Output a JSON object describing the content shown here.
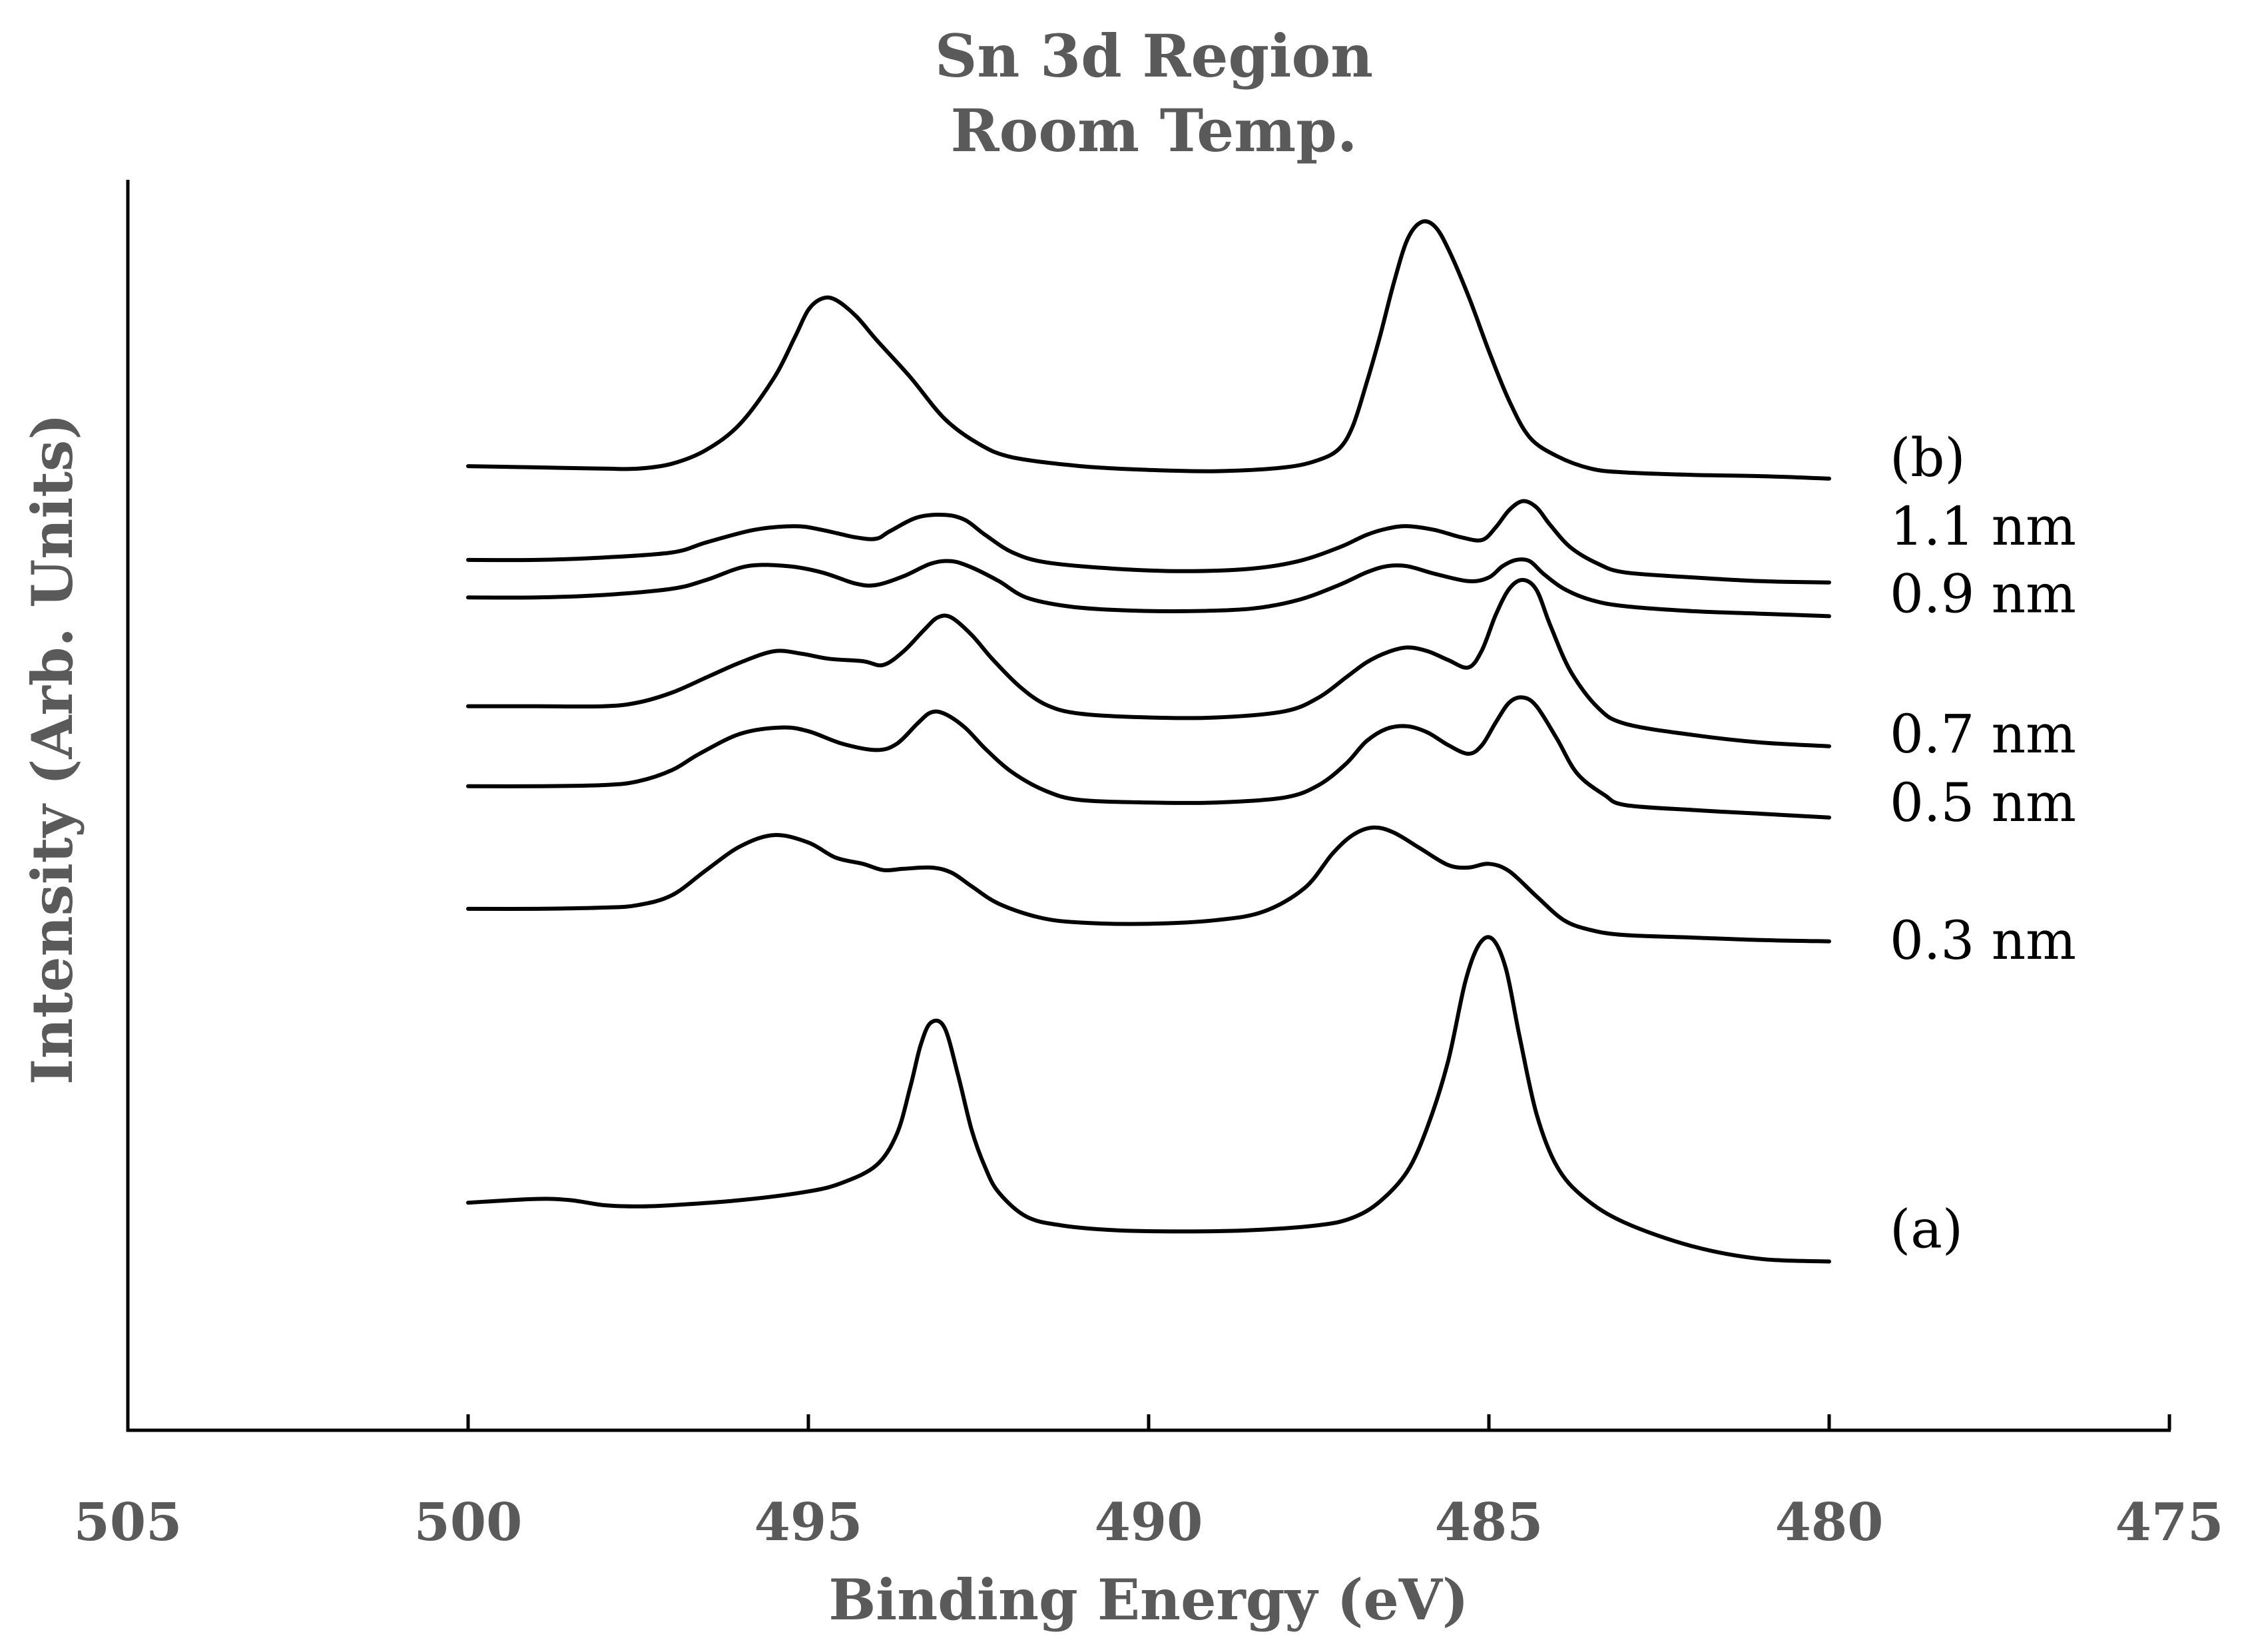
{
  "chart_data": {
    "type": "line",
    "title_lines": [
      "Sn 3d Region",
      "Room Temp."
    ],
    "xlabel": "Binding Energy (eV)",
    "ylabel": "Intensity (Arb. Units)",
    "xlim": [
      505,
      475
    ],
    "x_reversed": true,
    "x_ticks": [
      505,
      500,
      495,
      490,
      485,
      480,
      475
    ],
    "y_units": "arbitrary, stacked offsets (0 = bottom axis, 100 = top of axis)",
    "ylim": [
      0,
      100
    ],
    "series": [
      {
        "name": "(b)",
        "label": "(b)",
        "label_y": 77.8,
        "points": [
          [
            500,
            77.1
          ],
          [
            499,
            77.0
          ],
          [
            498,
            76.9
          ],
          [
            497.5,
            76.9
          ],
          [
            497,
            77.3
          ],
          [
            496.5,
            78.4
          ],
          [
            496,
            80.5
          ],
          [
            495.5,
            84.2
          ],
          [
            495.2,
            87.4
          ],
          [
            495,
            89.6
          ],
          [
            494.8,
            90.5
          ],
          [
            494.6,
            90.4
          ],
          [
            494.3,
            89.1
          ],
          [
            494,
            87.2
          ],
          [
            493.5,
            84.2
          ],
          [
            493,
            80.9
          ],
          [
            492.5,
            78.9
          ],
          [
            492,
            77.8
          ],
          [
            491,
            77.1
          ],
          [
            490,
            76.8
          ],
          [
            489,
            76.7
          ],
          [
            488,
            77.0
          ],
          [
            487.5,
            77.6
          ],
          [
            487.2,
            78.5
          ],
          [
            487,
            80.3
          ],
          [
            486.8,
            83.7
          ],
          [
            486.6,
            87.5
          ],
          [
            486.4,
            91.7
          ],
          [
            486.2,
            95.2
          ],
          [
            486,
            96.6
          ],
          [
            485.8,
            96.3
          ],
          [
            485.6,
            94.5
          ],
          [
            485.3,
            90.7
          ],
          [
            485,
            86.3
          ],
          [
            484.7,
            82.3
          ],
          [
            484.4,
            79.4
          ],
          [
            484,
            77.9
          ],
          [
            483.5,
            76.9
          ],
          [
            483,
            76.6
          ],
          [
            482,
            76.4
          ],
          [
            481,
            76.3
          ],
          [
            480,
            76.1
          ]
        ]
      },
      {
        "name": "1.1 nm",
        "label": "1.1 nm",
        "label_y": 72.3,
        "points": [
          [
            500,
            69.6
          ],
          [
            499,
            69.6
          ],
          [
            498,
            69.8
          ],
          [
            497,
            70.2
          ],
          [
            496.5,
            71.0
          ],
          [
            495.8,
            72.0
          ],
          [
            495.2,
            72.3
          ],
          [
            494.8,
            72.0
          ],
          [
            494.3,
            71.4
          ],
          [
            494,
            71.3
          ],
          [
            493.8,
            71.9
          ],
          [
            493.4,
            73.0
          ],
          [
            493,
            73.2
          ],
          [
            492.7,
            72.8
          ],
          [
            492.4,
            71.6
          ],
          [
            492,
            70.2
          ],
          [
            491.5,
            69.4
          ],
          [
            490.5,
            68.9
          ],
          [
            489.5,
            68.7
          ],
          [
            488.5,
            68.9
          ],
          [
            487.8,
            69.5
          ],
          [
            487.2,
            70.6
          ],
          [
            486.8,
            71.6
          ],
          [
            486.5,
            72.1
          ],
          [
            486.2,
            72.3
          ],
          [
            485.8,
            72.0
          ],
          [
            485.4,
            71.4
          ],
          [
            485.1,
            71.2
          ],
          [
            484.9,
            72.2
          ],
          [
            484.7,
            73.6
          ],
          [
            484.5,
            74.3
          ],
          [
            484.3,
            73.8
          ],
          [
            484.1,
            72.4
          ],
          [
            483.8,
            70.6
          ],
          [
            483.4,
            69.3
          ],
          [
            483,
            68.6
          ],
          [
            482,
            68.2
          ],
          [
            481,
            67.9
          ],
          [
            480,
            67.8
          ]
        ]
      },
      {
        "name": "0.9 nm",
        "label": "0.9 nm",
        "label_y": 66.9,
        "points": [
          [
            500,
            66.6
          ],
          [
            499,
            66.6
          ],
          [
            498,
            66.8
          ],
          [
            497,
            67.3
          ],
          [
            496.5,
            68.0
          ],
          [
            495.9,
            69.1
          ],
          [
            495.3,
            69.1
          ],
          [
            494.8,
            68.6
          ],
          [
            494.3,
            67.7
          ],
          [
            494,
            67.6
          ],
          [
            493.6,
            68.3
          ],
          [
            493.2,
            69.3
          ],
          [
            492.9,
            69.5
          ],
          [
            492.6,
            69.0
          ],
          [
            492.2,
            67.9
          ],
          [
            491.8,
            66.6
          ],
          [
            491.2,
            65.9
          ],
          [
            490.5,
            65.6
          ],
          [
            489.5,
            65.5
          ],
          [
            488.5,
            65.7
          ],
          [
            487.8,
            66.4
          ],
          [
            487.2,
            67.6
          ],
          [
            486.8,
            68.6
          ],
          [
            486.5,
            69.1
          ],
          [
            486.2,
            69.1
          ],
          [
            485.8,
            68.5
          ],
          [
            485.3,
            67.9
          ],
          [
            485,
            68.2
          ],
          [
            484.8,
            69.1
          ],
          [
            484.6,
            69.6
          ],
          [
            484.4,
            69.5
          ],
          [
            484.2,
            68.5
          ],
          [
            483.9,
            67.3
          ],
          [
            483.5,
            66.4
          ],
          [
            483,
            65.9
          ],
          [
            482,
            65.5
          ],
          [
            481,
            65.3
          ],
          [
            480,
            65.1
          ]
        ]
      },
      {
        "name": "0.7 nm",
        "label": "0.7 nm",
        "label_y": 55.7,
        "points": [
          [
            500,
            57.9
          ],
          [
            499,
            57.9
          ],
          [
            498,
            57.9
          ],
          [
            497.5,
            58.2
          ],
          [
            497,
            59.0
          ],
          [
            496.5,
            60.2
          ],
          [
            496,
            61.4
          ],
          [
            495.5,
            62.3
          ],
          [
            495.1,
            62.1
          ],
          [
            494.7,
            61.7
          ],
          [
            494.2,
            61.5
          ],
          [
            493.9,
            61.2
          ],
          [
            493.6,
            62.3
          ],
          [
            493.3,
            64.0
          ],
          [
            493.1,
            65.0
          ],
          [
            492.9,
            65.0
          ],
          [
            492.6,
            63.6
          ],
          [
            492.3,
            61.7
          ],
          [
            491.9,
            59.5
          ],
          [
            491.5,
            58.0
          ],
          [
            491,
            57.3
          ],
          [
            490,
            57.0
          ],
          [
            489,
            57.0
          ],
          [
            488,
            57.5
          ],
          [
            487.5,
            58.6
          ],
          [
            487.1,
            60.2
          ],
          [
            486.8,
            61.4
          ],
          [
            486.5,
            62.2
          ],
          [
            486.2,
            62.6
          ],
          [
            485.9,
            62.3
          ],
          [
            485.6,
            61.6
          ],
          [
            485.3,
            61.0
          ],
          [
            485.1,
            62.4
          ],
          [
            484.9,
            65.2
          ],
          [
            484.7,
            67.3
          ],
          [
            484.5,
            68.0
          ],
          [
            484.3,
            67.2
          ],
          [
            484.1,
            64.4
          ],
          [
            483.8,
            60.7
          ],
          [
            483.4,
            57.8
          ],
          [
            483,
            56.5
          ],
          [
            482,
            55.6
          ],
          [
            481,
            55.0
          ],
          [
            480,
            54.7
          ]
        ]
      },
      {
        "name": "0.5 nm",
        "label": "0.5 nm",
        "label_y": 50.2,
        "points": [
          [
            500,
            51.5
          ],
          [
            499,
            51.5
          ],
          [
            498,
            51.6
          ],
          [
            497.5,
            51.9
          ],
          [
            497,
            52.8
          ],
          [
            496.6,
            54.1
          ],
          [
            496,
            55.7
          ],
          [
            495.4,
            56.2
          ],
          [
            495,
            55.9
          ],
          [
            494.5,
            54.9
          ],
          [
            494,
            54.4
          ],
          [
            493.7,
            54.9
          ],
          [
            493.4,
            56.5
          ],
          [
            493.2,
            57.4
          ],
          [
            493,
            57.3
          ],
          [
            492.7,
            56.2
          ],
          [
            492.4,
            54.5
          ],
          [
            492,
            52.6
          ],
          [
            491.5,
            51.1
          ],
          [
            491,
            50.4
          ],
          [
            490,
            50.2
          ],
          [
            489,
            50.2
          ],
          [
            488,
            50.6
          ],
          [
            487.5,
            51.6
          ],
          [
            487.1,
            53.3
          ],
          [
            486.8,
            55.1
          ],
          [
            486.5,
            56.1
          ],
          [
            486.2,
            56.3
          ],
          [
            485.9,
            55.8
          ],
          [
            485.6,
            54.8
          ],
          [
            485.3,
            54.1
          ],
          [
            485.1,
            54.8
          ],
          [
            484.9,
            56.6
          ],
          [
            484.7,
            58.2
          ],
          [
            484.5,
            58.6
          ],
          [
            484.3,
            57.9
          ],
          [
            484,
            55.3
          ],
          [
            483.7,
            52.5
          ],
          [
            483.3,
            50.8
          ],
          [
            483,
            50.0
          ],
          [
            482,
            49.6
          ],
          [
            481,
            49.3
          ],
          [
            480,
            49.0
          ]
        ]
      },
      {
        "name": "0.3 nm",
        "label": "0.3 nm",
        "label_y": 39.2,
        "points": [
          [
            500,
            41.7
          ],
          [
            499,
            41.7
          ],
          [
            498,
            41.8
          ],
          [
            497.5,
            42.0
          ],
          [
            497,
            42.8
          ],
          [
            496.5,
            44.8
          ],
          [
            496,
            46.7
          ],
          [
            495.5,
            47.6
          ],
          [
            495,
            47.0
          ],
          [
            494.6,
            45.8
          ],
          [
            494.2,
            45.3
          ],
          [
            493.9,
            44.8
          ],
          [
            493.6,
            44.9
          ],
          [
            493.2,
            45.0
          ],
          [
            492.9,
            44.6
          ],
          [
            492.6,
            43.5
          ],
          [
            492.2,
            42.1
          ],
          [
            491.6,
            41.0
          ],
          [
            491,
            40.6
          ],
          [
            490,
            40.5
          ],
          [
            489,
            40.8
          ],
          [
            488.3,
            41.5
          ],
          [
            487.7,
            43.4
          ],
          [
            487.3,
            46.1
          ],
          [
            487.0,
            47.6
          ],
          [
            486.7,
            48.2
          ],
          [
            486.4,
            47.8
          ],
          [
            486,
            46.5
          ],
          [
            485.6,
            45.2
          ],
          [
            485.3,
            45.0
          ],
          [
            485,
            45.3
          ],
          [
            484.7,
            44.7
          ],
          [
            484.3,
            42.7
          ],
          [
            483.9,
            40.8
          ],
          [
            483.5,
            40.0
          ],
          [
            483,
            39.6
          ],
          [
            482,
            39.4
          ],
          [
            481,
            39.2
          ],
          [
            480,
            39.1
          ]
        ]
      },
      {
        "name": "(a)",
        "label": "(a)",
        "label_y": 16.1,
        "points": [
          [
            500,
            18.2
          ],
          [
            499,
            18.5
          ],
          [
            498.5,
            18.4
          ],
          [
            498,
            18.0
          ],
          [
            497.5,
            17.9
          ],
          [
            497,
            18.0
          ],
          [
            496,
            18.4
          ],
          [
            495,
            19.1
          ],
          [
            494.5,
            19.8
          ],
          [
            494,
            21.2
          ],
          [
            493.7,
            23.7
          ],
          [
            493.5,
            27.5
          ],
          [
            493.35,
            30.8
          ],
          [
            493.2,
            32.6
          ],
          [
            493.0,
            32.2
          ],
          [
            492.8,
            28.4
          ],
          [
            492.6,
            24.0
          ],
          [
            492.4,
            21.0
          ],
          [
            492.2,
            19.0
          ],
          [
            491.8,
            17.1
          ],
          [
            491.3,
            16.4
          ],
          [
            490.5,
            16.0
          ],
          [
            489.5,
            15.9
          ],
          [
            488.5,
            16.0
          ],
          [
            487.5,
            16.4
          ],
          [
            487,
            17.0
          ],
          [
            486.6,
            18.3
          ],
          [
            486.2,
            20.7
          ],
          [
            485.9,
            24.3
          ],
          [
            485.6,
            29.5
          ],
          [
            485.35,
            35.8
          ],
          [
            485.15,
            38.8
          ],
          [
            484.95,
            39.3
          ],
          [
            484.75,
            36.9
          ],
          [
            484.55,
            31.5
          ],
          [
            484.3,
            25.3
          ],
          [
            484.0,
            21.1
          ],
          [
            483.6,
            18.6
          ],
          [
            483,
            16.6
          ],
          [
            482,
            14.7
          ],
          [
            481,
            13.7
          ],
          [
            480,
            13.5
          ]
        ]
      }
    ]
  }
}
